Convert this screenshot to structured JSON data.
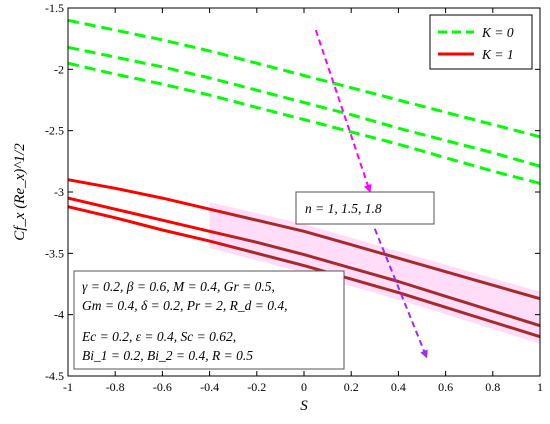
{
  "chart_data": {
    "type": "line",
    "xlabel": "S",
    "ylabel": "Cf_x (Re_x)^1/2",
    "xlim": [
      -1,
      1
    ],
    "ylim": [
      -4.5,
      -1.5
    ],
    "xticks": [
      "-1",
      "-0.8",
      "-0.6",
      "-0.4",
      "-0.2",
      "0",
      "0.2",
      "0.4",
      "0.6",
      "0.8",
      "1"
    ],
    "yticks": [
      "-1.5",
      "-2",
      "-2.5",
      "-3",
      "-3.5",
      "-4",
      "-4.5"
    ],
    "grid": false,
    "legend": {
      "position": "top-right",
      "entries": [
        {
          "label": "K = 0",
          "style": "dashed",
          "color": "#00ff00"
        },
        {
          "label": "K = 1",
          "style": "solid",
          "color": "#ff0000"
        }
      ]
    },
    "x": [
      -1,
      -0.8,
      -0.6,
      -0.4,
      -0.2,
      0,
      0.2,
      0.4,
      0.6,
      0.8,
      1
    ],
    "series": [
      {
        "group": "K = 0",
        "n": "1",
        "values": [
          -1.6,
          -1.68,
          -1.76,
          -1.85,
          -1.95,
          -2.05,
          -2.15,
          -2.25,
          -2.35,
          -2.45,
          -2.55
        ]
      },
      {
        "group": "K = 0",
        "n": "1.5",
        "values": [
          -1.82,
          -1.9,
          -1.98,
          -2.07,
          -2.17,
          -2.27,
          -2.37,
          -2.48,
          -2.58,
          -2.68,
          -2.79
        ]
      },
      {
        "group": "K = 0",
        "n": "1.8",
        "values": [
          -1.95,
          -2.04,
          -2.12,
          -2.21,
          -2.31,
          -2.41,
          -2.51,
          -2.61,
          -2.72,
          -2.83,
          -2.93
        ]
      },
      {
        "group": "K = 1",
        "n": "1",
        "values": [
          -2.9,
          -2.97,
          -3.05,
          -3.14,
          -3.23,
          -3.32,
          -3.43,
          -3.54,
          -3.65,
          -3.76,
          -3.87
        ]
      },
      {
        "group": "K = 1",
        "n": "1.5",
        "values": [
          -3.05,
          -3.14,
          -3.23,
          -3.32,
          -3.41,
          -3.51,
          -3.62,
          -3.73,
          -3.85,
          -3.97,
          -4.09
        ]
      },
      {
        "group": "K = 1",
        "n": "1.8",
        "values": [
          -3.12,
          -3.21,
          -3.31,
          -3.4,
          -3.5,
          -3.6,
          -3.71,
          -3.82,
          -3.94,
          -4.06,
          -4.18
        ]
      }
    ],
    "colors": {
      "k0": "#00ff00",
      "k1_start": "#ff0000",
      "k1_end": "#a52a2a",
      "band": "#ffd6f6",
      "arrow1": "#ff00ff",
      "arrow2": "#9c2aff"
    },
    "annotations": {
      "n_label": "n = 1, 1.5, 1.8",
      "params": [
        "γ = 0.2, β = 0.6, M = 0.4, Gr = 0.5,",
        "Gm = 0.4, δ = 0.2, Pr = 2, R_d = 0.4,",
        "Ec = 0.2, ε = 0.4, Sc = 0.62,",
        "Bi_1 = 0.2, Bi_2 = 0.4, R = 0.5"
      ],
      "arrow1": {
        "from": [
          0.05,
          -1.68
        ],
        "to": [
          0.28,
          -3.0
        ]
      },
      "arrow2": {
        "from": [
          0.3,
          -3.3
        ],
        "to": [
          0.52,
          -4.35
        ]
      }
    }
  }
}
